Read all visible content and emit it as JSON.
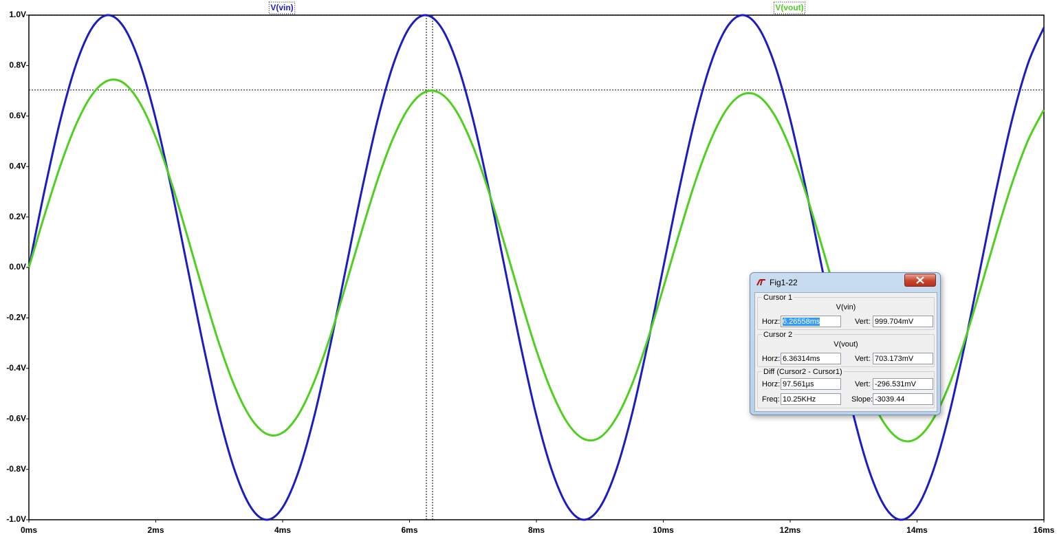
{
  "chart_data": {
    "type": "line",
    "x": [
      0,
      0.25,
      0.5,
      0.75,
      1,
      1.25,
      1.5,
      1.75,
      2,
      2.25,
      2.5,
      2.75,
      3,
      3.25,
      3.5,
      3.75,
      4,
      4.25,
      4.5,
      4.75,
      5,
      5.25,
      5.5,
      5.75,
      6,
      6.25,
      6.5,
      6.75,
      7,
      7.25,
      7.5,
      7.75,
      8,
      8.25,
      8.5,
      8.75,
      9,
      9.25,
      9.5,
      9.75,
      10,
      10.25,
      10.5,
      10.75,
      11,
      11.25,
      11.5,
      11.75,
      12,
      12.25,
      12.5,
      12.75,
      13,
      13.25,
      13.5,
      13.75,
      14,
      14.25,
      14.5,
      14.75,
      15,
      15.25,
      15.5,
      15.75,
      16
    ],
    "series": [
      {
        "name": "V(vin)",
        "color": "#1c1cc4",
        "values": [
          0,
          0.309,
          0.588,
          0.809,
          0.951,
          1,
          0.951,
          0.809,
          0.588,
          0.309,
          0,
          -0.309,
          -0.588,
          -0.809,
          -0.951,
          -1,
          -0.951,
          -0.809,
          -0.588,
          -0.309,
          0,
          0.309,
          0.588,
          0.809,
          0.951,
          1,
          0.951,
          0.809,
          0.588,
          0.309,
          0,
          -0.309,
          -0.588,
          -0.809,
          -0.951,
          -1,
          -0.951,
          -0.809,
          -0.588,
          -0.309,
          0,
          0.309,
          0.588,
          0.809,
          0.951,
          1,
          0.951,
          0.809,
          0.588,
          0.309,
          0,
          -0.309,
          -0.588,
          -0.809,
          -0.951,
          -1,
          -0.951,
          -0.809,
          -0.588,
          -0.309,
          0,
          0.309,
          0.588,
          0.809,
          0.951
        ]
      },
      {
        "name": "V(vout)",
        "color": "#4fcf1f",
        "values": [
          0,
          0.21,
          0.406,
          0.57,
          0.686,
          0.741,
          0.73,
          0.652,
          0.515,
          0.333,
          0.122,
          -0.097,
          -0.303,
          -0.475,
          -0.598,
          -0.66,
          -0.655,
          -0.583,
          -0.451,
          -0.274,
          -0.067,
          0.147,
          0.349,
          0.517,
          0.637,
          0.696,
          0.688,
          0.614,
          0.48,
          0.3,
          0.091,
          -0.125,
          -0.329,
          -0.498,
          -0.62,
          -0.68,
          -0.674,
          -0.6,
          -0.468,
          -0.289,
          -0.081,
          0.134,
          0.337,
          0.506,
          0.627,
          0.686,
          0.679,
          0.605,
          0.472,
          0.293,
          0.085,
          -0.131,
          -0.334,
          -0.503,
          -0.624,
          -0.684,
          -0.677,
          -0.603,
          -0.47,
          -0.291,
          -0.084,
          0.132,
          0.335,
          0.504,
          0.625
        ]
      }
    ],
    "xlim": [
      0,
      16
    ],
    "ylim": [
      -1,
      1
    ],
    "xticks": [
      {
        "value": 0,
        "label": "0ms"
      },
      {
        "value": 2,
        "label": "2ms"
      },
      {
        "value": 4,
        "label": "4ms"
      },
      {
        "value": 6,
        "label": "6ms"
      },
      {
        "value": 8,
        "label": "8ms"
      },
      {
        "value": 10,
        "label": "10ms"
      },
      {
        "value": 12,
        "label": "12ms"
      },
      {
        "value": 14,
        "label": "14ms"
      },
      {
        "value": 16,
        "label": "16ms"
      }
    ],
    "yticks": [
      {
        "value": -1,
        "label": "-1.0V"
      },
      {
        "value": -0.8,
        "label": "-0.8V"
      },
      {
        "value": -0.6,
        "label": "-0.6V"
      },
      {
        "value": -0.4,
        "label": "-0.4V"
      },
      {
        "value": -0.2,
        "label": "-0.2V"
      },
      {
        "value": 0,
        "label": "0.0V"
      },
      {
        "value": 0.2,
        "label": "0.2V"
      },
      {
        "value": 0.4,
        "label": "0.4V"
      },
      {
        "value": 0.6,
        "label": "0.6V"
      },
      {
        "value": 0.8,
        "label": "0.8V"
      },
      {
        "value": 1,
        "label": "1.0V"
      }
    ],
    "cursors": [
      {
        "x": 6.26558,
        "y": 0.999704
      },
      {
        "x": 6.36314,
        "y": 0.703173
      }
    ]
  },
  "dialog": {
    "title": "Fig1-22",
    "groups": [
      {
        "title": "Cursor 1",
        "trace": "V(vin)",
        "fields": [
          {
            "label": "Horz:",
            "value": "6.26558ms"
          },
          {
            "label": "Vert:",
            "value": "999.704mV"
          }
        ]
      },
      {
        "title": "Cursor 2",
        "trace": "V(vout)",
        "fields": [
          {
            "label": "Horz:",
            "value": "6.36314ms"
          },
          {
            "label": "Vert:",
            "value": "703.173mV"
          }
        ]
      },
      {
        "title": "Diff (Cursor2 - Cursor1)",
        "fields": [
          {
            "label": "Horz:",
            "value": "97.561µs"
          },
          {
            "label": "Vert:",
            "value": "-296.531mV"
          },
          {
            "label": "Freq:",
            "value": "10.25KHz"
          },
          {
            "label": "Slope:",
            "value": "-3039.44"
          }
        ]
      }
    ]
  }
}
